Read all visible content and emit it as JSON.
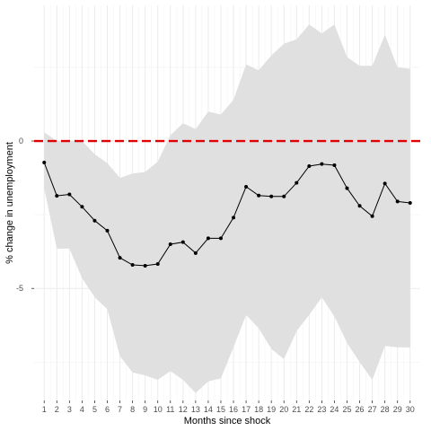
{
  "chart_data": {
    "type": "line",
    "title": "",
    "xlabel": "Months since shock",
    "ylabel": "% change in unemployment",
    "x_ticks": [
      1,
      2,
      3,
      4,
      5,
      6,
      7,
      8,
      9,
      10,
      11,
      12,
      13,
      14,
      15,
      16,
      17,
      18,
      19,
      20,
      21,
      22,
      23,
      24,
      25,
      26,
      27,
      28,
      29,
      30
    ],
    "y_ticks": [
      0,
      -5
    ],
    "xlim": [
      0.2,
      30.8
    ],
    "ylim": [
      -8.8,
      4.6
    ],
    "grid": true,
    "legend": "none",
    "reference_line": {
      "y": 0,
      "color": "#e00000",
      "style": "dashed"
    },
    "band_color": "#e0e0e0",
    "line_color": "#000000",
    "series": [
      {
        "x": [
          1,
          2,
          3,
          4,
          5,
          6,
          7,
          8,
          9,
          10,
          11,
          12,
          13,
          14,
          15,
          16,
          17,
          18,
          19,
          20,
          21,
          22,
          23,
          24,
          25,
          26,
          27,
          28,
          29,
          30
        ],
        "values": [
          -0.73,
          -1.86,
          -1.81,
          -2.23,
          -2.7,
          -3.04,
          -3.96,
          -4.2,
          -4.23,
          -4.17,
          -3.5,
          -3.43,
          -3.8,
          -3.3,
          -3.3,
          -2.6,
          -1.55,
          -1.85,
          -1.88,
          -1.88,
          -1.42,
          -0.85,
          -0.78,
          -0.82,
          -1.6,
          -2.2,
          -2.55,
          -1.44,
          -2.05,
          -2.1
        ],
        "lower": [
          -1.6,
          -3.65,
          -3.65,
          -4.65,
          -5.3,
          -5.7,
          -7.3,
          -7.85,
          -7.95,
          -8.1,
          -7.8,
          -8.1,
          -8.55,
          -8.15,
          -8.05,
          -7.0,
          -5.9,
          -6.35,
          -7.05,
          -7.4,
          -6.45,
          -5.9,
          -5.3,
          -5.95,
          -6.85,
          -7.5,
          -8.1,
          -6.95,
          -7.0,
          -7.0
        ],
        "upper": [
          0.3,
          0.0,
          0.0,
          0.0,
          -0.45,
          -0.75,
          -1.25,
          -1.1,
          -1.05,
          -0.7,
          0.2,
          0.6,
          0.4,
          1.0,
          0.9,
          1.4,
          2.6,
          2.4,
          2.9,
          3.3,
          3.45,
          3.95,
          3.65,
          3.95,
          2.85,
          2.55,
          2.55,
          3.6,
          2.5,
          2.45
        ]
      }
    ]
  }
}
